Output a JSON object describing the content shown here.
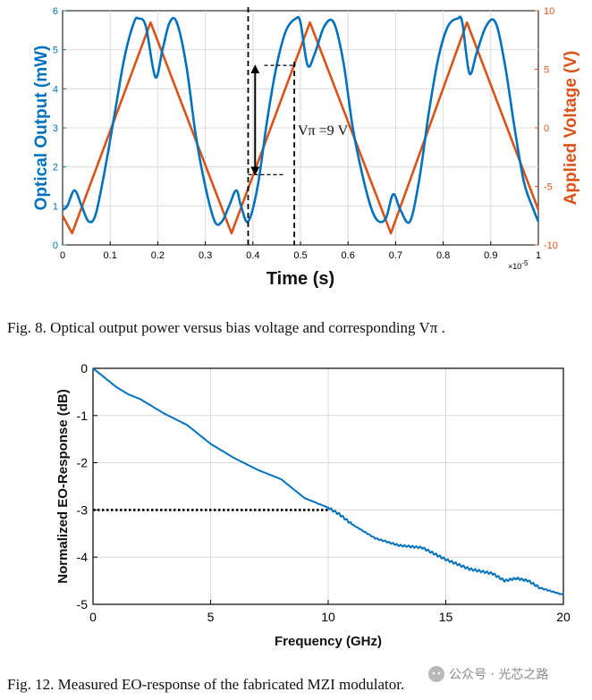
{
  "chart_data": [
    {
      "type": "line",
      "xlabel": "Time (s)",
      "x_exponent": "×10",
      "x_exponent_power": "-5",
      "ylabel_left": "Optical Output (mW)",
      "ylabel_right": "Applied Voltage (V)",
      "xlim": [
        0,
        1.0
      ],
      "ylim_left": [
        0,
        6
      ],
      "ylim_right": [
        -10,
        10
      ],
      "xticks": [
        "0",
        "0.1",
        "0.2",
        "0.3",
        "0.4",
        "0.5",
        "0.6",
        "0.7",
        "0.8",
        "0.9",
        "1"
      ],
      "yticks_left": [
        "0",
        "1",
        "2",
        "3",
        "4",
        "5",
        "6"
      ],
      "yticks_right": [
        "-10",
        "-5",
        "0",
        "5",
        "10"
      ],
      "grid": true,
      "series": [
        {
          "name": "Optical Output",
          "axis": "left",
          "color": "#0072bd",
          "x": [
            0,
            0.01,
            0.025,
            0.04,
            0.055,
            0.07,
            0.09,
            0.11,
            0.13,
            0.15,
            0.16,
            0.175,
            0.195,
            0.21,
            0.225,
            0.24,
            0.26,
            0.28,
            0.3,
            0.32,
            0.335,
            0.35,
            0.365,
            0.375,
            0.39,
            0.41,
            0.43,
            0.45,
            0.47,
            0.49,
            0.5,
            0.515,
            0.53,
            0.55,
            0.57,
            0.59,
            0.61,
            0.63,
            0.65,
            0.665,
            0.68,
            0.695,
            0.71,
            0.73,
            0.75,
            0.77,
            0.79,
            0.81,
            0.83,
            0.84,
            0.855,
            0.87,
            0.89,
            0.91,
            0.93,
            0.95,
            0.97,
            0.99,
            1.0
          ],
          "y": [
            0.9,
            1.0,
            1.4,
            1.0,
            0.6,
            0.8,
            2.0,
            3.4,
            4.8,
            5.7,
            5.8,
            5.6,
            4.3,
            5.0,
            5.7,
            5.7,
            4.6,
            2.8,
            1.5,
            0.6,
            0.6,
            1.0,
            1.4,
            1.0,
            0.6,
            1.5,
            3.2,
            4.6,
            5.5,
            5.8,
            5.7,
            4.6,
            4.9,
            5.6,
            5.7,
            4.7,
            3.0,
            1.8,
            0.9,
            0.6,
            0.7,
            1.3,
            0.9,
            0.6,
            1.7,
            3.4,
            4.8,
            5.6,
            5.8,
            5.7,
            4.4,
            4.9,
            5.6,
            5.7,
            4.6,
            3.0,
            1.6,
            0.9,
            0.6
          ]
        },
        {
          "name": "Applied Voltage",
          "axis": "right",
          "color": "#d95319",
          "x": [
            0,
            0.02,
            0.185,
            0.355,
            0.52,
            0.69,
            0.85,
            1.0
          ],
          "y": [
            -7.5,
            -9.0,
            9.0,
            -9.0,
            9.0,
            -9.0,
            9.0,
            -7.0
          ]
        }
      ],
      "annotation": "Vπ =9 V",
      "vpi_markers": {
        "t1": 0.39,
        "t2": 0.487,
        "v_low_mw": 1.8,
        "v_high_mw": 4.6
      }
    },
    {
      "type": "line",
      "xlabel": "Frequency (GHz)",
      "ylabel": "Normalized EO-Response (dB)",
      "xlim": [
        0,
        20
      ],
      "ylim": [
        -5,
        0
      ],
      "xticks": [
        "0",
        "5",
        "10",
        "15",
        "20"
      ],
      "yticks": [
        "0",
        "-1",
        "-2",
        "-3",
        "-4",
        "-5"
      ],
      "grid": true,
      "series": [
        {
          "name": "EO-Response",
          "color": "#0072bd",
          "x": [
            0,
            0.5,
            1,
            1.5,
            2,
            3,
            4,
            5,
            6,
            7,
            8,
            9,
            10,
            10.5,
            11,
            12,
            13,
            14,
            15,
            16,
            17,
            17.5,
            18,
            18.5,
            19,
            20
          ],
          "y": [
            0,
            -0.2,
            -0.4,
            -0.55,
            -0.65,
            -0.95,
            -1.2,
            -1.6,
            -1.9,
            -2.15,
            -2.35,
            -2.75,
            -2.95,
            -3.1,
            -3.3,
            -3.6,
            -3.75,
            -3.8,
            -4.05,
            -4.25,
            -4.35,
            -4.5,
            -4.45,
            -4.5,
            -4.65,
            -4.8
          ]
        }
      ],
      "threshold": {
        "y": -3,
        "x_end": 10
      }
    }
  ],
  "captions": {
    "fig8": "Fig. 8.    Optical output power versus bias voltage and corresponding Vπ .",
    "fig12": "Fig. 12.    Measured EO-response of the fabricated MZI modulator."
  },
  "watermark": "公众号 · 光芯之路",
  "colors": {
    "blue": "#0072bd",
    "orange": "#d95319",
    "grid": "#dcdcdc"
  }
}
